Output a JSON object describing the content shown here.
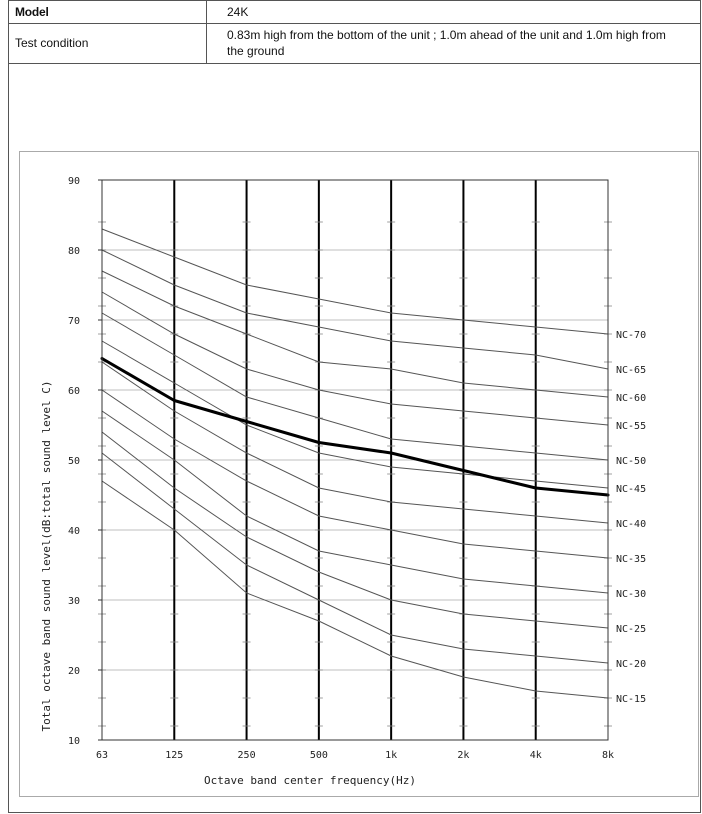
{
  "spec_table": {
    "model_label": "Model",
    "model_value": "24K",
    "test_condition_label": "Test condition",
    "test_condition_value": "0.83m high from the bottom of the unit ;  1.0m ahead of the unit  and 1.0m high from the ground"
  },
  "chart_data": {
    "type": "line",
    "title": "",
    "xlabel": "Octave band center frequency(Hz)",
    "ylabel": "Total octave band sound level(dB:total sound level C)",
    "categories": [
      "63",
      "125",
      "250",
      "500",
      "1k",
      "2k",
      "4k",
      "8k"
    ],
    "ylim": [
      10,
      90
    ],
    "yticks": [
      10,
      20,
      30,
      40,
      50,
      60,
      70,
      80,
      90
    ],
    "grid": true,
    "measured_color": "#000000",
    "nc_color": "#555555",
    "series": [
      {
        "name": "",
        "values": [
          64.5,
          58.5,
          55.5,
          52.5,
          51.0,
          48.5,
          46.0,
          45.0
        ]
      }
    ],
    "nc_curves": [
      {
        "name": "NC-70",
        "values": [
          83,
          79,
          75,
          73,
          71,
          70,
          69,
          68
        ]
      },
      {
        "name": "NC-65",
        "values": [
          80,
          75,
          71,
          69,
          67,
          66,
          65,
          63
        ]
      },
      {
        "name": "NC-60",
        "values": [
          77,
          72,
          68,
          64,
          63,
          61,
          60,
          59
        ]
      },
      {
        "name": "NC-55",
        "values": [
          74,
          68,
          63,
          60,
          58,
          57,
          56,
          55
        ]
      },
      {
        "name": "NC-50",
        "values": [
          71,
          65,
          59,
          56,
          53,
          52,
          51,
          50
        ]
      },
      {
        "name": "NC-45",
        "values": [
          67,
          61,
          55,
          51,
          49,
          48,
          47,
          46
        ]
      },
      {
        "name": "NC-40",
        "values": [
          64,
          57,
          51,
          46,
          44,
          43,
          42,
          41
        ]
      },
      {
        "name": "NC-35",
        "values": [
          60,
          53,
          47,
          42,
          40,
          38,
          37,
          36
        ]
      },
      {
        "name": "NC-30",
        "values": [
          57,
          50,
          42,
          37,
          35,
          33,
          32,
          31
        ]
      },
      {
        "name": "NC-25",
        "values": [
          54,
          46,
          39,
          34,
          30,
          28,
          27,
          26
        ]
      },
      {
        "name": "NC-20",
        "values": [
          51,
          43,
          35,
          30,
          25,
          23,
          22,
          21
        ]
      },
      {
        "name": "NC-15",
        "values": [
          47,
          40,
          31,
          27,
          22,
          19,
          17,
          16
        ]
      }
    ]
  }
}
